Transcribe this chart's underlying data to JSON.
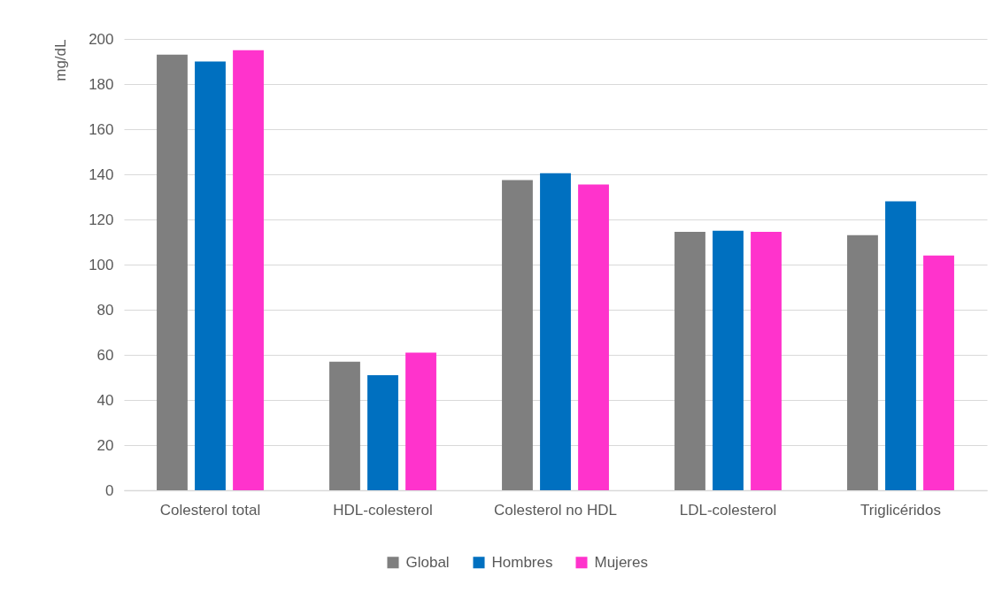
{
  "chart_data": {
    "type": "bar",
    "ylabel": "mg/dL",
    "categories": [
      "Colesterol total",
      "HDL-colesterol",
      "Colesterol no HDL",
      "LDL-colesterol",
      "Triglicéridos"
    ],
    "series": [
      {
        "name": "Global",
        "color": "#7f7f7f",
        "values": [
          193,
          57,
          137.5,
          114.5,
          113
        ]
      },
      {
        "name": "Hombres",
        "color": "#0070c0",
        "values": [
          190,
          51,
          140.5,
          115,
          128
        ]
      },
      {
        "name": "Mujeres",
        "color": "#ff33cc",
        "values": [
          195,
          61,
          135.5,
          114.5,
          104
        ]
      }
    ],
    "ylim": [
      0,
      200
    ],
    "yticks": [
      0,
      20,
      40,
      60,
      80,
      100,
      120,
      140,
      160,
      180,
      200
    ],
    "grid": "y",
    "legend": "bottom"
  }
}
